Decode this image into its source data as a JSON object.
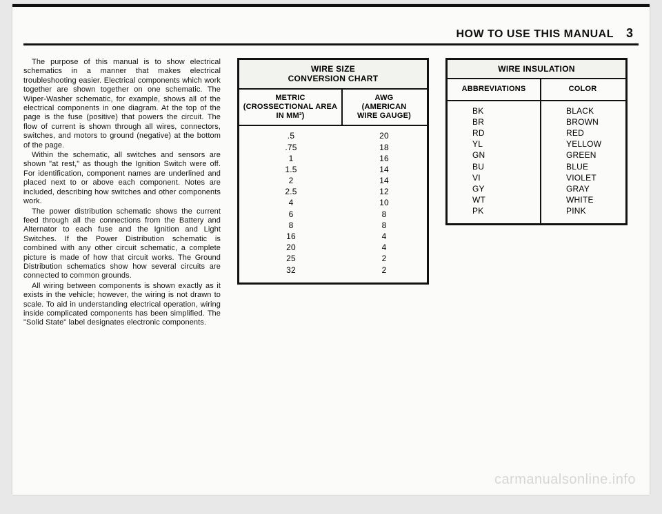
{
  "header": {
    "title": "HOW TO USE THIS MANUAL",
    "page_number": "3"
  },
  "body_text": {
    "p1": "The purpose of this manual is to show electrical schematics in a manner that makes electrical troubleshooting easier. Electrical components which work together are shown together on one schematic. The Wiper-Washer schematic, for example, shows all of the electrical components in one diagram. At the top of the page is the fuse (positive) that powers the circuit. The flow of current is shown through all wires, connectors, switches, and motors to ground (negative) at the bottom of the page.",
    "p2": "Within the schematic, all switches and sensors are shown \"at rest,\" as though the Ignition Switch were off. For identification, component names are underlined and placed next to or above each component. Notes are included, describing how switches and other components work.",
    "p3": "The power distribution schematic shows the current feed through all the connections from the Battery and Alternator to each fuse and the Ignition and Light Switches. If the Power Distribution schematic is combined with any other circuit schematic, a complete picture is made of how that circuit works. The Ground Distribution schematics show how several circuits are connected to common grounds.",
    "p4": "All wiring between components is shown exactly as it exists in the vehicle; however, the wiring is not drawn to scale. To aid in understanding electrical operation, wiring inside complicated components has been simplified. The \"Solid State\" label designates electronic components."
  },
  "wire_size_table": {
    "title_l1": "WIRE SIZE",
    "title_l2": "CONVERSION CHART",
    "head_metric_l1": "METRIC",
    "head_metric_l2": "(CROSSECTIONAL AREA",
    "head_metric_l3": "IN MM²)",
    "head_awg_l1": "AWG",
    "head_awg_l2": "(AMERICAN",
    "head_awg_l3": "WIRE GAUGE)",
    "rows": [
      {
        "mm": ".5",
        "awg": "20"
      },
      {
        "mm": ".75",
        "awg": "18"
      },
      {
        "mm": "1",
        "awg": "16"
      },
      {
        "mm": "1.5",
        "awg": "14"
      },
      {
        "mm": "2",
        "awg": "14"
      },
      {
        "mm": "2.5",
        "awg": "12"
      },
      {
        "mm": "4",
        "awg": "10"
      },
      {
        "mm": "6",
        "awg": "8"
      },
      {
        "mm": "8",
        "awg": "8"
      },
      {
        "mm": "16",
        "awg": "4"
      },
      {
        "mm": "20",
        "awg": "4"
      },
      {
        "mm": "25",
        "awg": "2"
      },
      {
        "mm": "32",
        "awg": "2"
      }
    ]
  },
  "insulation_table": {
    "title": "WIRE INSULATION",
    "head_abbr": "ABBREVIATIONS",
    "head_color": "COLOR",
    "rows": [
      {
        "abbr": "BK",
        "color": "BLACK"
      },
      {
        "abbr": "BR",
        "color": "BROWN"
      },
      {
        "abbr": "RD",
        "color": "RED"
      },
      {
        "abbr": "YL",
        "color": "YELLOW"
      },
      {
        "abbr": "GN",
        "color": "GREEN"
      },
      {
        "abbr": "BU",
        "color": "BLUE"
      },
      {
        "abbr": "VI",
        "color": "VIOLET"
      },
      {
        "abbr": "GY",
        "color": "GRAY"
      },
      {
        "abbr": "WT",
        "color": "WHITE"
      },
      {
        "abbr": "PK",
        "color": "PINK"
      }
    ]
  },
  "watermark": "carmanualsonline.info"
}
